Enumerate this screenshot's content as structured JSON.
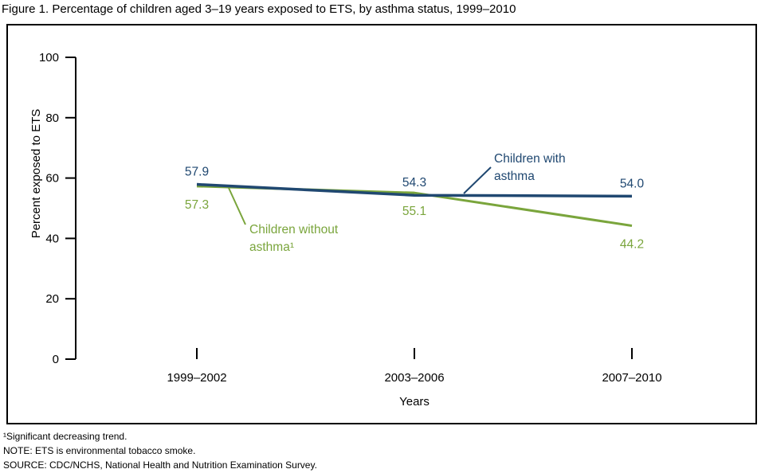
{
  "title": "Figure 1. Percentage of children aged 3–19 years exposed to ETS, by asthma status, 1999–2010",
  "chart_data": {
    "type": "line",
    "categories": [
      "1999–2002",
      "2003–2006",
      "2007–2010"
    ],
    "x_axis_label": "Years",
    "y_axis_label": "Percent exposed to ETS",
    "ylim": [
      0,
      100
    ],
    "yticks": [
      0,
      20,
      40,
      60,
      80,
      100
    ],
    "grid": false,
    "legend_position": "inline-annotations",
    "series": [
      {
        "name": "Children with asthma",
        "label_lines": [
          "Children with",
          "asthma"
        ],
        "color": "#204871",
        "values": [
          57.9,
          54.3,
          54.0
        ],
        "value_labels": [
          "57.9",
          "54.3",
          "54.0"
        ]
      },
      {
        "name": "Children without asthma¹",
        "label_lines": [
          "Children without",
          "asthma¹"
        ],
        "color": "#7aa53c",
        "values": [
          57.3,
          55.1,
          44.2
        ],
        "value_labels": [
          "57.3",
          "55.1",
          "44.2"
        ]
      }
    ]
  },
  "footnotes": [
    "¹Significant decreasing trend.",
    "NOTE: ETS is environmental tobacco smoke.",
    "SOURCE: CDC/NCHS, National Health and Nutrition Examination Survey."
  ]
}
